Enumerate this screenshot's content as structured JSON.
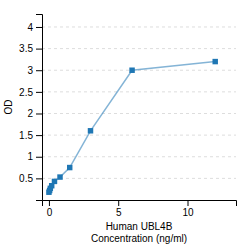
{
  "chart_data": {
    "type": "line",
    "x": [
      0.0,
      0.05,
      0.1,
      0.2,
      0.4,
      0.8,
      1.5,
      3.0,
      6.0,
      12.0
    ],
    "values": [
      0.18,
      0.22,
      0.27,
      0.33,
      0.43,
      0.53,
      0.75,
      1.6,
      3.0,
      3.2
    ],
    "marker": "square",
    "xlabel": [
      "Human UBL4B",
      "Concentration (ng/ml)"
    ],
    "ylabel": "OD",
    "xlim": [
      -0.5,
      13.5
    ],
    "ylim": [
      0.0,
      4.3
    ],
    "xticks": [
      0,
      5,
      10
    ],
    "yticks": [
      0.5,
      1,
      1.5,
      2,
      2.5,
      3,
      3.5,
      4
    ],
    "grid": true
  }
}
